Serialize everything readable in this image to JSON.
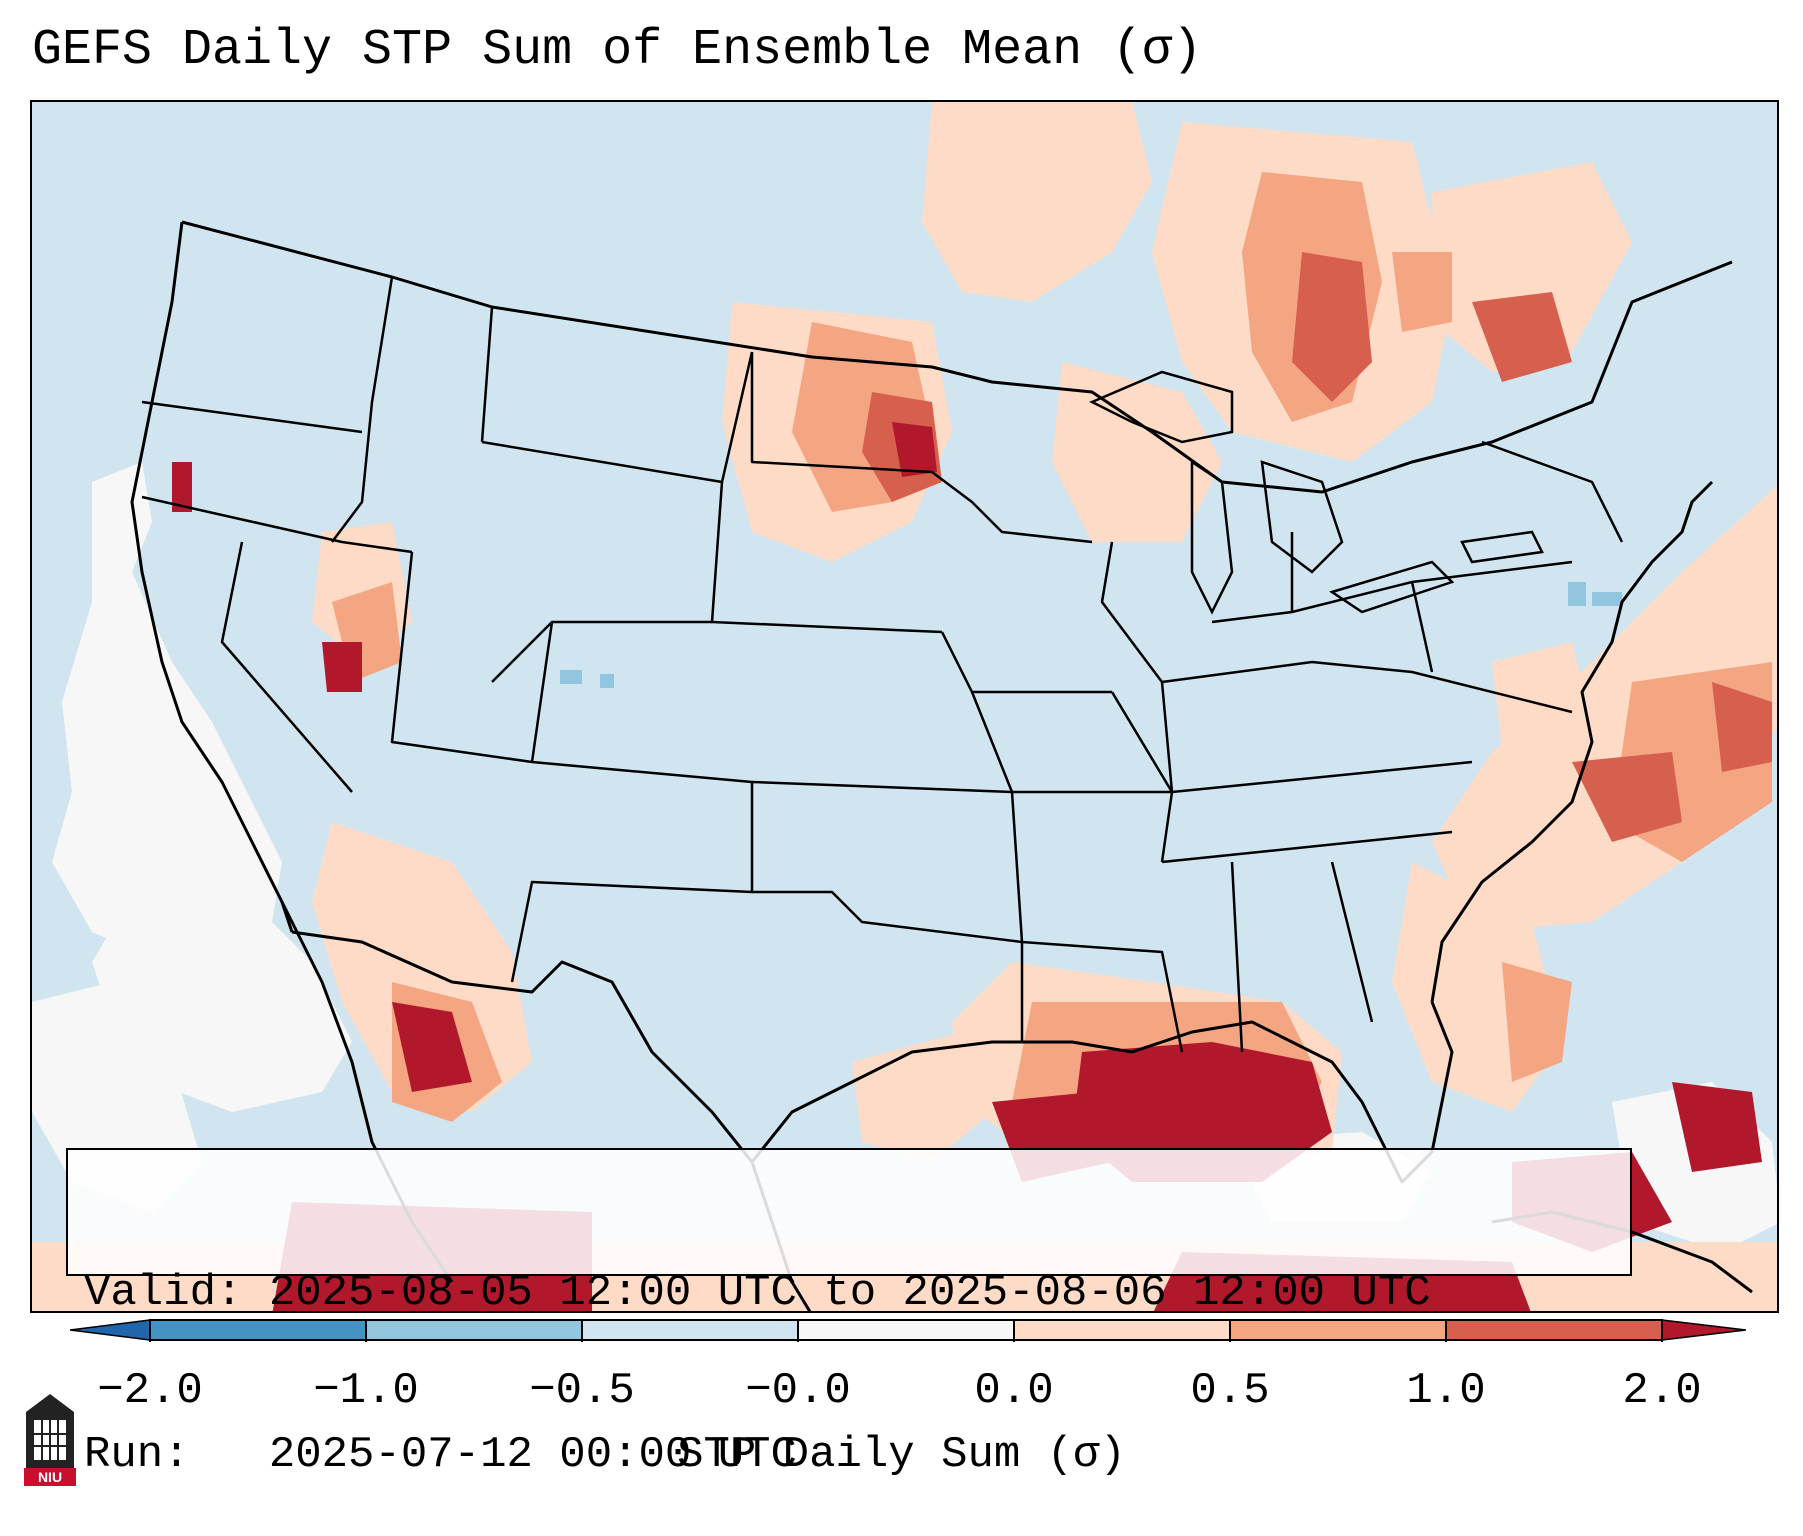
{
  "title": "GEFS Daily STP Sum of Ensemble Mean (σ)",
  "map": {
    "region": "CONUS, southern Canada, northern Mexico, Gulf of Mexico",
    "background_color": "#d1e5f0",
    "hotspots": [
      "Gulf of Mexico / Gulf Coast (strong positive)",
      "Eastern South Dakota / North Dakota",
      "Northwestern Mexico / Sierra Madre",
      "Ontario / Quebec",
      "Western Atlantic off Carolinas",
      "Bahamas / Cuba region"
    ]
  },
  "info": {
    "valid_label": "Valid:",
    "valid_value": "2025-08-05 12:00 UTC to 2025-08-06 12:00 UTC",
    "run_label": "Run:",
    "run_value": "2025-07-12 00:00 UTC"
  },
  "colorbar": {
    "label": "STP Daily Sum (σ)",
    "ticks": [
      "−2.0",
      "−1.0",
      "−0.5",
      "−0.0",
      "0.0",
      "0.5",
      "1.0",
      "2.0"
    ],
    "colors": [
      "#2166ac",
      "#4393c3",
      "#92c5de",
      "#d1e5f0",
      "#f7f7f7",
      "#fddbc7",
      "#f4a582",
      "#d6604d",
      "#b2182b"
    ]
  },
  "logo": {
    "text": "NIU"
  }
}
